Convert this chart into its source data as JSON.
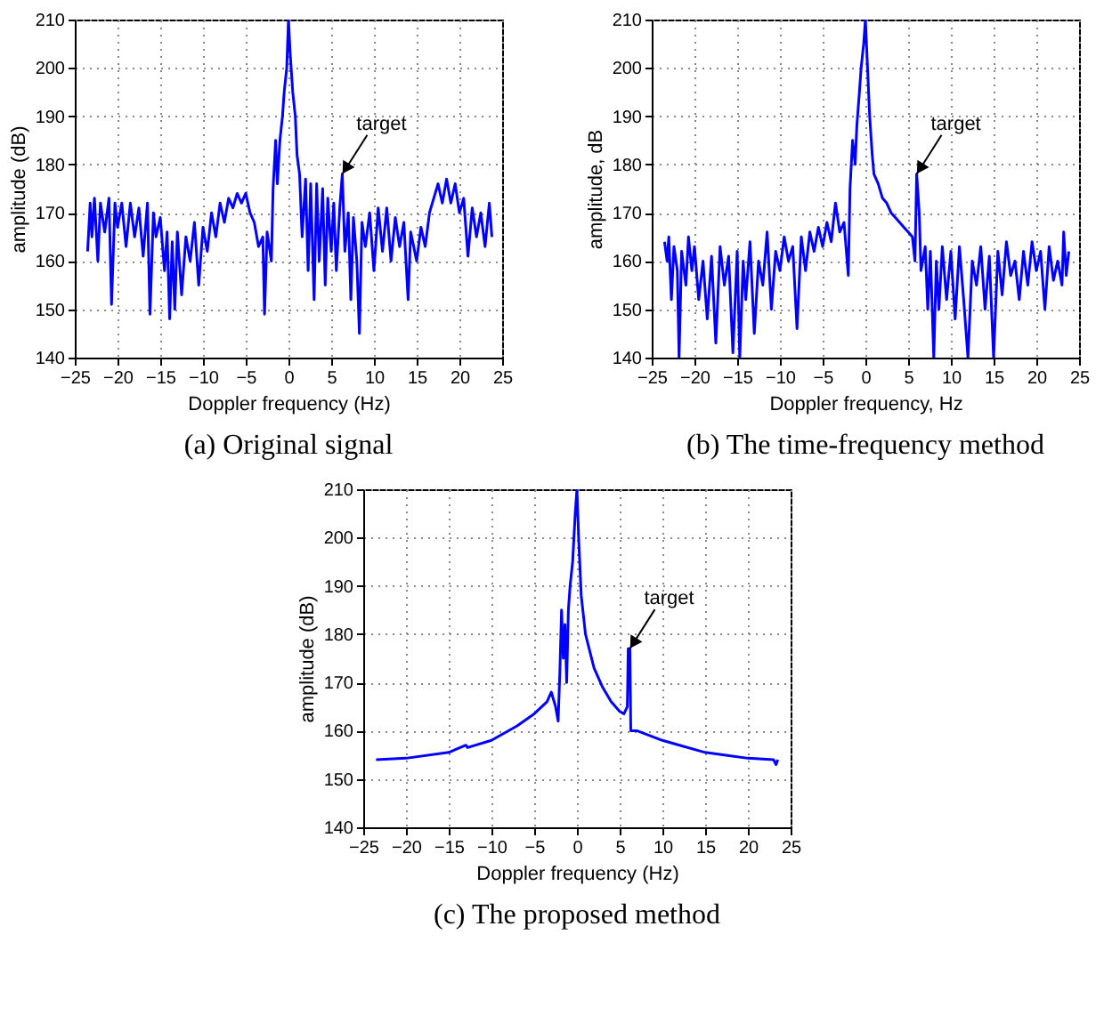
{
  "chart_data": [
    {
      "type": "line",
      "title": "(a)  Original signal",
      "xlabel": "Doppler frequency (Hz)",
      "ylabel": "amplitude (dB)",
      "xlim": [
        -25,
        25
      ],
      "ylim": [
        140,
        210
      ],
      "xticks": [
        -25,
        -20,
        -15,
        -10,
        -5,
        0,
        5,
        10,
        15,
        20,
        25
      ],
      "yticks": [
        140,
        150,
        160,
        170,
        180,
        190,
        200,
        210
      ],
      "grid": true,
      "annotations": [
        {
          "text": "target",
          "x": 6.3,
          "y": 178
        }
      ],
      "x": [
        -23.5,
        -23.2,
        -23,
        -22.7,
        -22.3,
        -22,
        -21.5,
        -21,
        -20.7,
        -20.3,
        -20,
        -19.5,
        -19,
        -18.5,
        -18,
        -17.5,
        -17,
        -16.5,
        -16.2,
        -15.8,
        -15.5,
        -15,
        -14.5,
        -14.2,
        -13.9,
        -13.6,
        -13.3,
        -13,
        -12.5,
        -12,
        -11.5,
        -11,
        -10.5,
        -10,
        -9.5,
        -9,
        -8.5,
        -8,
        -7.5,
        -7,
        -6.5,
        -6,
        -5.5,
        -5,
        -4.5,
        -4,
        -3.5,
        -3,
        -2.8,
        -2.5,
        -2,
        -1.8,
        -1.5,
        -1.3,
        -1,
        -0.7,
        -0.5,
        -0.2,
        0,
        0.2,
        0.5,
        0.8,
        1,
        1.3,
        1.6,
        2,
        2.3,
        2.6,
        3,
        3.3,
        3.6,
        4,
        4.3,
        4.6,
        5,
        5.3,
        5.6,
        6,
        6.3,
        6.6,
        7,
        7.3,
        7.6,
        8,
        8.3,
        8.6,
        9,
        9.5,
        10,
        10.5,
        11,
        11.5,
        12,
        12.5,
        13,
        13.5,
        14,
        14.3,
        15,
        15.5,
        16,
        16.5,
        17,
        17.5,
        18,
        18.5,
        19,
        19.5,
        20,
        20.5,
        21,
        21.5,
        22,
        22.5,
        23,
        23.5,
        23.8
      ],
      "series": [
        {
          "color": "#0000ff",
          "values": [
            162,
            172,
            165,
            173,
            160,
            172,
            166,
            173,
            151,
            172,
            167,
            172,
            163,
            172,
            165,
            171,
            161,
            172,
            149,
            170,
            165,
            169,
            158,
            166,
            148,
            164,
            150,
            166,
            153,
            165,
            160,
            168,
            155,
            167,
            162,
            170,
            165,
            172,
            168,
            173,
            171,
            174,
            172,
            174,
            170,
            168,
            163,
            165,
            149,
            166,
            160,
            175,
            185,
            176,
            185,
            190,
            195,
            200,
            210,
            203,
            195,
            190,
            182,
            178,
            165,
            177,
            158,
            176,
            152,
            176,
            160,
            175,
            155,
            173,
            162,
            172,
            158,
            171,
            178,
            162,
            170,
            152,
            169,
            160,
            145,
            168,
            163,
            170,
            158,
            171,
            162,
            171,
            160,
            169,
            163,
            168,
            152,
            166,
            160,
            167,
            163,
            170,
            173,
            176,
            172,
            177,
            172,
            176,
            170,
            173,
            161,
            171,
            165,
            170,
            163,
            172,
            165
          ]
        }
      ]
    },
    {
      "type": "line",
      "title": "(b)  The time-frequency method",
      "xlabel": "Doppler frequency, Hz",
      "ylabel": "amplitude, dB",
      "xlim": [
        -25,
        25
      ],
      "ylim": [
        140,
        210
      ],
      "xticks": [
        -25,
        -20,
        -15,
        -10,
        -5,
        0,
        5,
        10,
        15,
        20,
        25
      ],
      "yticks": [
        140,
        150,
        160,
        170,
        180,
        190,
        200,
        210
      ],
      "grid": true,
      "annotations": [
        {
          "text": "target",
          "x": 6,
          "y": 178
        }
      ],
      "x": [
        -23.5,
        -23.2,
        -23,
        -22.7,
        -22.4,
        -22,
        -21.8,
        -21.5,
        -21,
        -20.7,
        -20.3,
        -20,
        -19.5,
        -19,
        -18.5,
        -18,
        -17.5,
        -17,
        -16.5,
        -16,
        -15.5,
        -15,
        -14.7,
        -14.3,
        -14,
        -13.5,
        -13,
        -12.5,
        -12,
        -11.5,
        -11,
        -10.5,
        -10,
        -9.5,
        -9,
        -8.5,
        -8,
        -7.5,
        -7,
        -6.5,
        -6,
        -5.5,
        -5,
        -4.5,
        -4,
        -3.5,
        -3,
        -2.5,
        -2,
        -1.8,
        -1.5,
        -1.2,
        -1,
        -0.7,
        -0.5,
        -0.2,
        0,
        0.2,
        0.5,
        0.8,
        1,
        1.5,
        2,
        2.5,
        3,
        3.5,
        4,
        4.5,
        5,
        5.5,
        5.8,
        6,
        6.3,
        6.5,
        7,
        7.3,
        7.6,
        8,
        8.3,
        8.6,
        9,
        9.5,
        10,
        10.5,
        11,
        11.5,
        12,
        12.5,
        13,
        13.5,
        14,
        14.5,
        15,
        15.5,
        16,
        16.5,
        17,
        17.5,
        18,
        18.5,
        19,
        19.5,
        20,
        20.5,
        21,
        21.5,
        22,
        22.5,
        23,
        23.2,
        23.5,
        23.8
      ],
      "series": [
        {
          "color": "#0000ff",
          "values": [
            164,
            160,
            165,
            152,
            163,
            158,
            140,
            162,
            155,
            165,
            158,
            163,
            152,
            160,
            148,
            161,
            143,
            163,
            155,
            161,
            141,
            162,
            140,
            160,
            152,
            164,
            145,
            160,
            155,
            166,
            150,
            162,
            158,
            165,
            160,
            163,
            146,
            165,
            158,
            166,
            162,
            167,
            163,
            168,
            164,
            172,
            166,
            168,
            157,
            175,
            185,
            180,
            188,
            195,
            200,
            205,
            210,
            202,
            190,
            182,
            178,
            176,
            173,
            172,
            170,
            169,
            168,
            167,
            166,
            165,
            160,
            178,
            170,
            158,
            163,
            150,
            162,
            140,
            160,
            150,
            163,
            152,
            162,
            148,
            163,
            152,
            140,
            160,
            155,
            163,
            150,
            161,
            140,
            162,
            153,
            164,
            157,
            160,
            152,
            162,
            155,
            164,
            158,
            162,
            150,
            163,
            156,
            160,
            155,
            166,
            157,
            162
          ]
        }
      ]
    },
    {
      "type": "line",
      "title": "(c)  The proposed method",
      "xlabel": "Doppler frequency (Hz)",
      "ylabel": "amplitude (dB)",
      "xlim": [
        -25,
        25
      ],
      "ylim": [
        140,
        210
      ],
      "xticks": [
        -25,
        -20,
        -15,
        -10,
        -5,
        0,
        5,
        10,
        15,
        20,
        25
      ],
      "yticks": [
        140,
        150,
        160,
        170,
        180,
        190,
        200,
        210
      ],
      "grid": true,
      "annotations": [
        {
          "text": "target",
          "x": 6.2,
          "y": 177
        }
      ],
      "x": [
        -23.5,
        -20,
        -15,
        -13,
        -12.8,
        -10,
        -7,
        -5,
        -3.5,
        -3,
        -2.5,
        -2.2,
        -2,
        -1.8,
        -1.6,
        -1.4,
        -1.2,
        -1,
        -0.8,
        -0.5,
        -0.2,
        0,
        0.2,
        0.5,
        1,
        2,
        3,
        4,
        5,
        5.5,
        5.9,
        6,
        6.2,
        6.3,
        7,
        10,
        12,
        15,
        18,
        20,
        23,
        23.3,
        23.5
      ],
      "series": [
        {
          "color": "#0000ff",
          "values": [
            154,
            154.3,
            155.5,
            157,
            156.5,
            158,
            161,
            163.5,
            166,
            168,
            165,
            162,
            172,
            185,
            175,
            182,
            170,
            185,
            190,
            195,
            205,
            210,
            200,
            188,
            180,
            173,
            169,
            166,
            164,
            163.5,
            165,
            177,
            177,
            160,
            160,
            158,
            157,
            155.5,
            154.8,
            154.3,
            154,
            153,
            154
          ]
        }
      ]
    }
  ]
}
